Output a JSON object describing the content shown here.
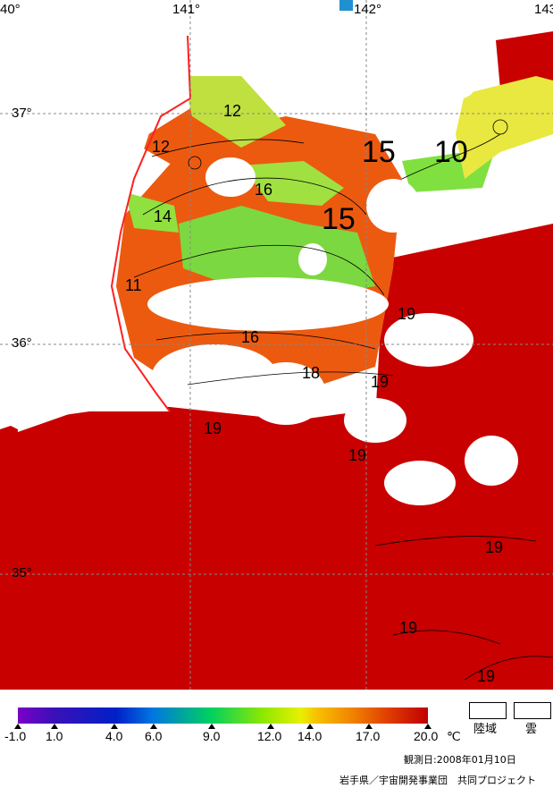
{
  "longitude_labels": [
    "40°",
    "141°",
    "142°",
    "143"
  ],
  "latitude_labels": [
    "37°",
    "36°",
    "35°"
  ],
  "isotherm_labels": [
    "12",
    "12",
    "16",
    "15",
    "10",
    "14",
    "15",
    "11",
    "19",
    "16",
    "18",
    "19",
    "19",
    "19",
    "19",
    "19",
    "19"
  ],
  "legend": {
    "ticks": [
      "-1.0",
      "1.0",
      "4.0",
      "6.0",
      "9.0",
      "12.0",
      "14.0",
      "17.0",
      "20.0"
    ],
    "unit": "℃",
    "land_label": "陸域",
    "cloud_label": "雲"
  },
  "observation_date": "観測日:2008年01月10日",
  "credit": "岩手県／宇宙開発事業団　共同プロジェクト",
  "colors": {
    "warm_sea": "#c80000",
    "orange_band": "#ec5a10",
    "green_zone": "#90e040",
    "yellow_zone": "#e8e840",
    "coastline": "#ff2020",
    "cloud": "#ffffff"
  }
}
